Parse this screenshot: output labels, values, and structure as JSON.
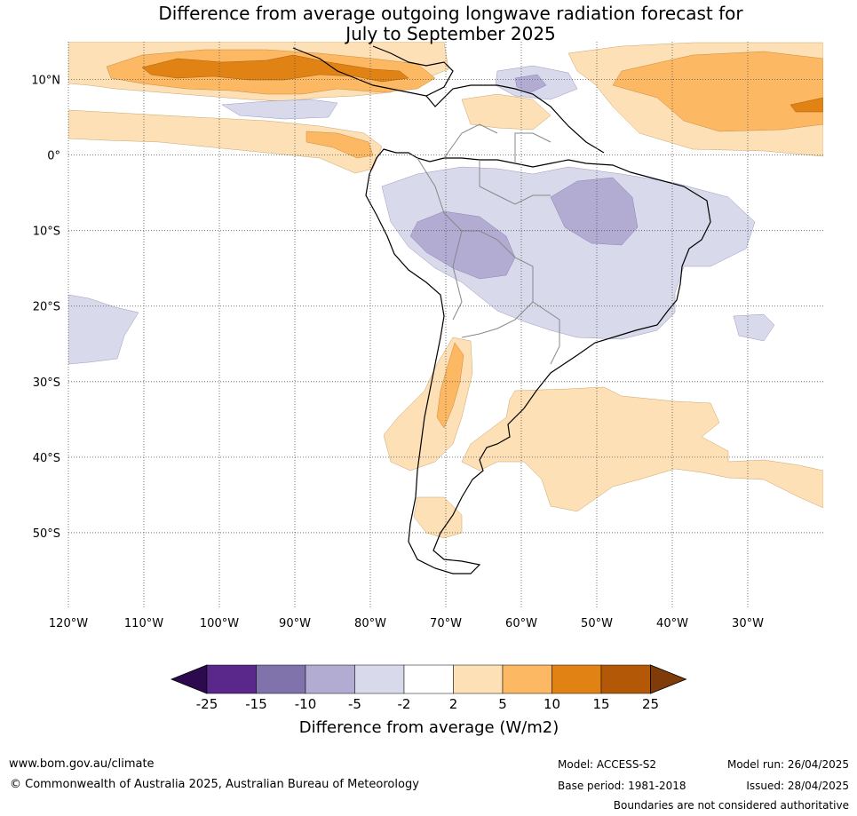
{
  "title": {
    "line1": "Difference from average outgoing longwave radiation forecast for",
    "line2": "July to September 2025"
  },
  "map": {
    "lon_range": [
      -120,
      -20
    ],
    "lat_range": [
      -60,
      15
    ],
    "lat_ticks": [
      {
        "value": 10,
        "label": "10°N"
      },
      {
        "value": 0,
        "label": "0°"
      },
      {
        "value": -10,
        "label": "10°S"
      },
      {
        "value": -20,
        "label": "20°S"
      },
      {
        "value": -30,
        "label": "30°S"
      },
      {
        "value": -40,
        "label": "40°S"
      },
      {
        "value": -50,
        "label": "50°S"
      }
    ],
    "lon_ticks": [
      {
        "value": -120,
        "label": "120°W"
      },
      {
        "value": -110,
        "label": "110°W"
      },
      {
        "value": -100,
        "label": "100°W"
      },
      {
        "value": -90,
        "label": "90°W"
      },
      {
        "value": -80,
        "label": "80°W"
      },
      {
        "value": -70,
        "label": "70°W"
      },
      {
        "value": -60,
        "label": "60°W"
      },
      {
        "value": -50,
        "label": "50°W"
      },
      {
        "value": -40,
        "label": "40°W"
      },
      {
        "value": -30,
        "label": "30°W"
      }
    ],
    "grid": "dotted"
  },
  "colorbar": {
    "title": "Difference from average (W/m2)",
    "bounds": [
      "-25",
      "-15",
      "-10",
      "-5",
      "-2",
      "2",
      "5",
      "10",
      "15",
      "25"
    ],
    "under_color": "#2d0a4e",
    "over_color": "#7f3b08",
    "colors": [
      "#5a278b",
      "#8073ac",
      "#b2abd2",
      "#d8daeb",
      "#ffffff",
      "#fee0b6",
      "#fdb863",
      "#e08214",
      "#b35806"
    ]
  },
  "footer": {
    "website": "www.bom.gov.au/climate",
    "copyright": "© Commonwealth of Australia 2025, Australian Bureau of Meteorology",
    "model": "Model: ACCESS-S2",
    "base_period": "Base period: 1981-2018",
    "model_run": "Model run: 26/04/2025",
    "issued": "Issued: 28/04/2025",
    "boundaries_note": "Boundaries are not considered authoritative"
  }
}
